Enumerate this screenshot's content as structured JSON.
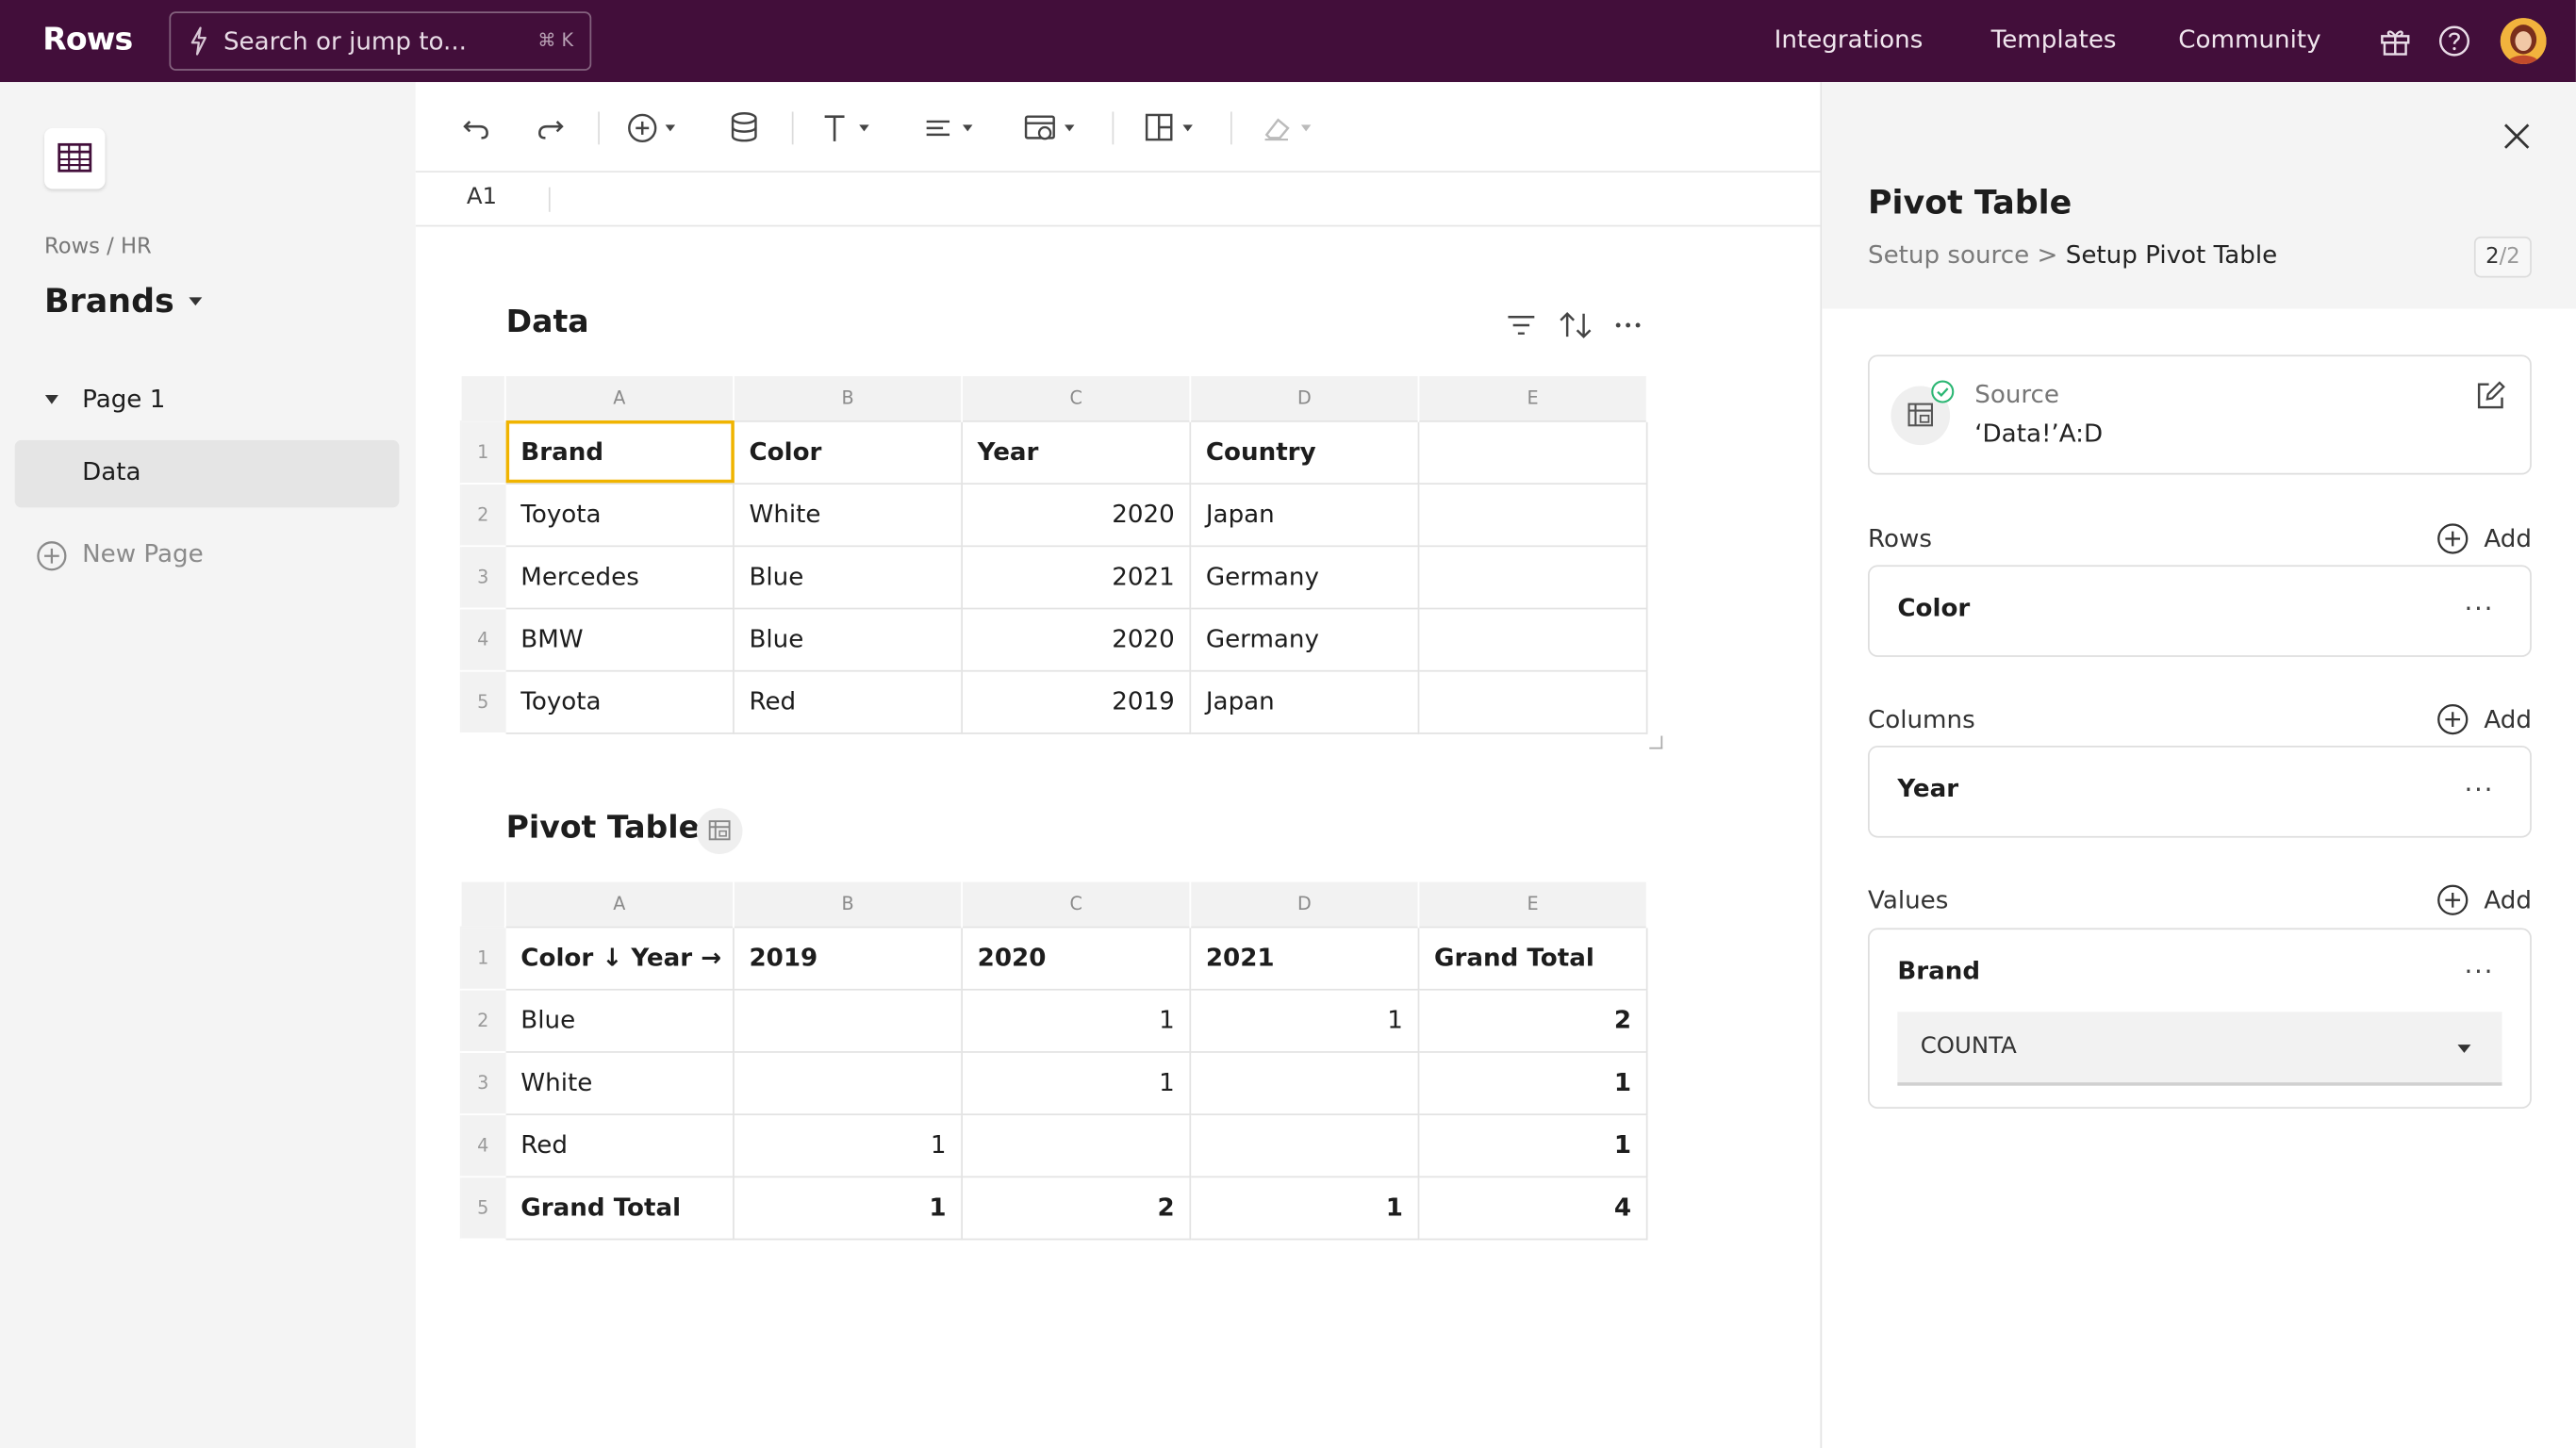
{
  "topbar": {
    "logo": "Rows",
    "search_placeholder": "Search or jump to...",
    "search_shortcut": "⌘ K",
    "nav": [
      "Integrations",
      "Templates",
      "Community"
    ],
    "icons": [
      "gift-icon",
      "help-icon",
      "avatar"
    ]
  },
  "sidebar": {
    "breadcrumb": "Rows / HR",
    "doc_title": "Brands",
    "page": "Page 1",
    "sub_item": "Data",
    "new_page": "New Page"
  },
  "toolbar": {
    "icons": [
      "undo-icon",
      "redo-icon",
      "insert-icon",
      "data-source-icon",
      "text-format-icon",
      "align-icon",
      "format-icon",
      "layout-icon",
      "eraser-icon"
    ]
  },
  "formula_bar": {
    "cell_ref": "A1"
  },
  "data_table": {
    "title": "Data",
    "columns": [
      "A",
      "B",
      "C",
      "D",
      "E"
    ],
    "rows": [
      [
        "Brand",
        "Color",
        "Year",
        "Country",
        ""
      ],
      [
        "Toyota",
        "White",
        "2020",
        "Japan",
        ""
      ],
      [
        "Mercedes",
        "Blue",
        "2021",
        "Germany",
        ""
      ],
      [
        "BMW",
        "Blue",
        "2020",
        "Germany",
        ""
      ],
      [
        "Toyota",
        "Red",
        "2019",
        "Japan",
        ""
      ]
    ]
  },
  "pivot_table": {
    "title": "Pivot Table",
    "columns": [
      "A",
      "B",
      "C",
      "D",
      "E"
    ],
    "rows": [
      [
        "Color ↓ Year →",
        "2019",
        "2020",
        "2021",
        "Grand Total"
      ],
      [
        "Blue",
        "",
        "1",
        "1",
        "2"
      ],
      [
        "White",
        "",
        "1",
        "",
        "1"
      ],
      [
        "Red",
        "1",
        "",
        "",
        "1"
      ],
      [
        "Grand Total",
        "1",
        "2",
        "1",
        "4"
      ]
    ]
  },
  "panel": {
    "title": "Pivot Table",
    "step_prev": "Setup source",
    "step_sep": ">",
    "step_current": "Setup Pivot Table",
    "step_num": "2",
    "step_total": "/2",
    "source_label": "Source",
    "source_value": "‘Data!’A:D",
    "rows_label": "Rows",
    "rows_field": "Color",
    "columns_label": "Columns",
    "columns_field": "Year",
    "values_label": "Values",
    "values_field": "Brand",
    "aggregation": "COUNTA",
    "add_label": "Add",
    "more": "···",
    "colors": {
      "accent": "#420e3a",
      "selection": "#f0b400",
      "check": "#2bb673"
    }
  }
}
